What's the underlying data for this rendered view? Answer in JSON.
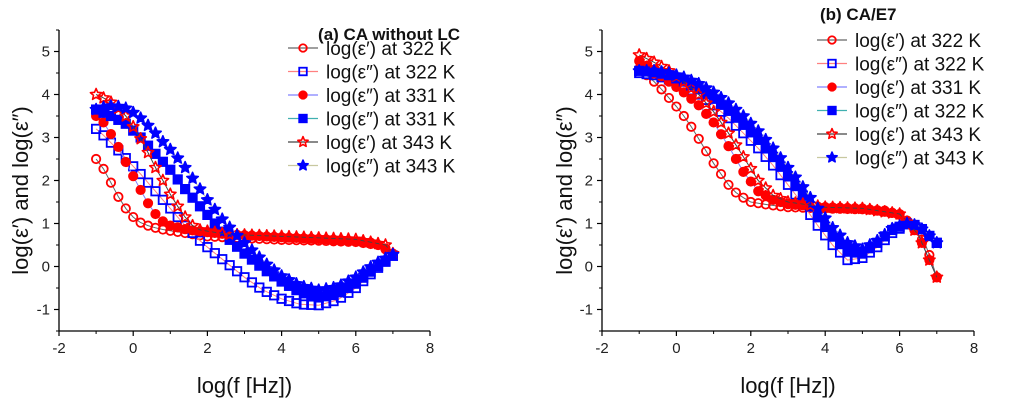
{
  "chart_data": [
    {
      "type": "scatter",
      "title": "(a) CA without LC",
      "xlabel": "log(f [Hz])",
      "ylabel": "log(ε′) and log(ε″)",
      "xlim": [
        -2,
        8
      ],
      "ylim": [
        -1.5,
        5.5
      ],
      "xticks": [
        "-2",
        "0",
        "2",
        "4",
        "6",
        "8"
      ],
      "yticks": [
        "-1",
        "0",
        "1",
        "2",
        "3",
        "4",
        "5"
      ],
      "grid": false,
      "legend_position": "top-right",
      "series": [
        {
          "name": "log(ε′) at 322 K",
          "marker": "circle-open",
          "color": "#ff0000",
          "line": "#666666",
          "x": [
            -1,
            -0.8,
            -0.6,
            -0.4,
            -0.2,
            0,
            0.2,
            0.4,
            0.6,
            0.8,
            1,
            2,
            3,
            4,
            5,
            6,
            6.6,
            6.8,
            7
          ],
          "y": [
            2.5,
            2.27,
            1.95,
            1.62,
            1.35,
            1.15,
            1.02,
            0.95,
            0.9,
            0.86,
            0.83,
            0.7,
            0.66,
            0.62,
            0.6,
            0.57,
            0.5,
            0.42,
            0.28
          ]
        },
        {
          "name": "log(ε″) at 322 K",
          "marker": "square-open",
          "color": "#0000ff",
          "line": "#ff8080",
          "x": [
            -1,
            -0.8,
            -0.6,
            -0.4,
            -0.2,
            0,
            0.2,
            0.4,
            0.6,
            0.8,
            1,
            1.2,
            1.4,
            1.6,
            1.8,
            2,
            2.5,
            3,
            3.5,
            4,
            4.5,
            5,
            5.5,
            6,
            6.5,
            7
          ],
          "y": [
            3.2,
            3.05,
            2.88,
            2.7,
            2.52,
            2.33,
            2.15,
            1.95,
            1.75,
            1.55,
            1.35,
            1.15,
            0.95,
            0.78,
            0.6,
            0.45,
            0.1,
            -0.25,
            -0.55,
            -0.75,
            -0.88,
            -0.9,
            -0.78,
            -0.5,
            -0.1,
            0.25
          ]
        },
        {
          "name": "log(ε″) at 331 K",
          "marker": "circle-filled",
          "color": "#ff0000",
          "line": "#8080ff",
          "x": [
            -1,
            -0.8,
            -0.6,
            -0.4,
            -0.2,
            0,
            0.2,
            0.4,
            0.6,
            0.8,
            1,
            1.5,
            2.5,
            4,
            5.5,
            6.5,
            7
          ],
          "y": [
            3.5,
            3.35,
            3.08,
            2.78,
            2.43,
            2.1,
            1.78,
            1.47,
            1.22,
            1.05,
            0.95,
            0.85,
            0.75,
            0.68,
            0.62,
            0.55,
            0.3
          ]
        },
        {
          "name": "log(ε″) at 331 K",
          "marker": "square-filled",
          "color": "#0000ff",
          "line": "#40b0b0",
          "x": [
            -1,
            -0.6,
            -0.2,
            0.2,
            0.6,
            1,
            1.4,
            1.8,
            2.2,
            2.6,
            3,
            3.5,
            4,
            4.5,
            5,
            5.5,
            6,
            6.5,
            7
          ],
          "y": [
            3.65,
            3.5,
            3.32,
            3.0,
            2.62,
            2.25,
            1.8,
            1.4,
            1.0,
            0.62,
            0.3,
            -0.05,
            -0.35,
            -0.6,
            -0.72,
            -0.65,
            -0.4,
            -0.05,
            0.25
          ]
        },
        {
          "name": "log(ε′) at 343 K",
          "marker": "star-open",
          "color": "#ff0000",
          "line": "#444444",
          "x": [
            -1,
            -0.8,
            -0.6,
            -0.4,
            -0.2,
            0,
            0.2,
            0.4,
            0.6,
            0.8,
            1,
            1.2,
            1.4,
            1.6,
            1.8,
            2.5,
            4,
            6,
            6.8,
            7
          ],
          "y": [
            4.0,
            3.92,
            3.82,
            3.68,
            3.5,
            3.25,
            2.97,
            2.65,
            2.3,
            2.0,
            1.68,
            1.4,
            1.15,
            0.95,
            0.85,
            0.75,
            0.7,
            0.63,
            0.5,
            0.3
          ]
        },
        {
          "name": "log(ε″) at 343 K",
          "marker": "star-filled",
          "color": "#0000ff",
          "line": "#c8c8a0",
          "x": [
            -1,
            -0.8,
            -0.6,
            -0.4,
            -0.2,
            0,
            0.2,
            0.4,
            0.6,
            0.8,
            1,
            1.2,
            1.4,
            1.6,
            1.8,
            2,
            2.4,
            2.8,
            3.2,
            3.6,
            4,
            4.5,
            5,
            5.5,
            6,
            6.5,
            7
          ],
          "y": [
            3.65,
            3.7,
            3.73,
            3.72,
            3.68,
            3.58,
            3.45,
            3.28,
            3.1,
            2.9,
            2.72,
            2.52,
            2.3,
            2.05,
            1.8,
            1.55,
            1.1,
            0.72,
            0.38,
            0.05,
            -0.22,
            -0.45,
            -0.55,
            -0.48,
            -0.25,
            0.05,
            0.28
          ]
        }
      ]
    },
    {
      "type": "scatter",
      "title": "(b)  CA/E7",
      "xlabel": "log(f [Hz])",
      "ylabel": "log(ε′) and log(ε″)",
      "xlim": [
        -2,
        8
      ],
      "ylim": [
        -1.5,
        5.5
      ],
      "xticks": [
        "-2",
        "0",
        "2",
        "4",
        "6",
        "8"
      ],
      "yticks": [
        "-1",
        "0",
        "1",
        "2",
        "3",
        "4",
        "5"
      ],
      "grid": false,
      "legend_position": "top-right",
      "series": [
        {
          "name": "log(ε′) at 322 K",
          "marker": "circle-open",
          "color": "#ff0000",
          "line": "#666666",
          "x": [
            -1,
            -0.8,
            -0.6,
            -0.4,
            -0.2,
            0,
            0.2,
            0.4,
            0.6,
            0.8,
            1,
            1.2,
            1.4,
            1.6,
            1.8,
            2,
            2.5,
            3,
            4,
            5,
            5.6,
            6,
            6.3,
            6.5,
            6.7,
            6.85,
            7
          ],
          "y": [
            4.6,
            4.45,
            4.3,
            4.12,
            3.92,
            3.72,
            3.5,
            3.25,
            2.97,
            2.68,
            2.4,
            2.15,
            1.9,
            1.72,
            1.6,
            1.5,
            1.43,
            1.38,
            1.35,
            1.33,
            1.3,
            1.2,
            1.0,
            0.75,
            0.5,
            0.15,
            -0.25
          ]
        },
        {
          "name": "log(ε″) at 322 K",
          "marker": "square-open",
          "color": "#0000ff",
          "line": "#ff8080",
          "x": [
            -1,
            -0.6,
            -0.2,
            0.2,
            0.6,
            1,
            1.4,
            1.8,
            2.2,
            2.6,
            3,
            3.4,
            3.8,
            4.2,
            4.6,
            5,
            5.4,
            5.8,
            6.2,
            6.5,
            7
          ],
          "y": [
            4.5,
            4.45,
            4.35,
            4.2,
            4.0,
            3.75,
            3.45,
            3.1,
            2.75,
            2.35,
            1.9,
            1.45,
            0.95,
            0.5,
            0.15,
            0.2,
            0.45,
            0.78,
            0.98,
            0.95,
            0.55
          ]
        },
        {
          "name": "log(ε′) at 331 K",
          "marker": "circle-filled",
          "color": "#ff0000",
          "line": "#8080ff",
          "x": [
            -1,
            -0.6,
            -0.2,
            0.2,
            0.6,
            1,
            1.4,
            1.8,
            2.2,
            2.6,
            3,
            4,
            5,
            6,
            6.5,
            7
          ],
          "y": [
            4.78,
            4.55,
            4.3,
            4.05,
            3.75,
            3.35,
            2.8,
            2.2,
            1.75,
            1.55,
            1.45,
            1.38,
            1.35,
            1.22,
            0.75,
            -0.25
          ]
        },
        {
          "name": "log(ε″) at 322 K",
          "marker": "square-filled",
          "color": "#0000ff",
          "line": "#40b0b0",
          "x": [
            -1,
            -0.6,
            -0.2,
            0.2,
            0.6,
            1,
            1.4,
            1.8,
            2.2,
            2.6,
            3,
            3.4,
            3.8,
            4.2,
            4.6,
            5,
            5.4,
            5.8,
            6.2,
            6.5,
            7
          ],
          "y": [
            4.55,
            4.52,
            4.45,
            4.3,
            4.12,
            3.9,
            3.62,
            3.3,
            2.95,
            2.55,
            2.1,
            1.65,
            1.15,
            0.7,
            0.35,
            0.3,
            0.55,
            0.85,
            1.0,
            0.95,
            0.55
          ]
        },
        {
          "name": "log(ε′) at 343 K",
          "marker": "star-open",
          "color": "#ff0000",
          "line": "#444444",
          "x": [
            -1,
            -0.6,
            -0.2,
            0.2,
            0.6,
            1,
            1.4,
            1.8,
            2.2,
            2.6,
            3,
            4,
            5,
            6,
            6.5,
            7
          ],
          "y": [
            4.92,
            4.75,
            4.55,
            4.3,
            4.0,
            3.6,
            3.1,
            2.55,
            2.0,
            1.65,
            1.5,
            1.38,
            1.35,
            1.22,
            0.75,
            -0.25
          ]
        },
        {
          "name": "log(ε″) at 343 K",
          "marker": "star-filled",
          "color": "#0000ff",
          "line": "#c8c8a0",
          "x": [
            -1,
            -0.6,
            -0.2,
            0.2,
            0.6,
            1,
            1.4,
            1.8,
            2.2,
            2.6,
            3,
            3.4,
            3.8,
            4.2,
            4.6,
            5,
            5.4,
            5.8,
            6.2,
            6.5,
            7
          ],
          "y": [
            4.55,
            4.55,
            4.5,
            4.4,
            4.25,
            4.05,
            3.8,
            3.5,
            3.15,
            2.75,
            2.3,
            1.85,
            1.35,
            0.9,
            0.55,
            0.4,
            0.6,
            0.88,
            1.0,
            0.95,
            0.55
          ]
        }
      ]
    }
  ]
}
